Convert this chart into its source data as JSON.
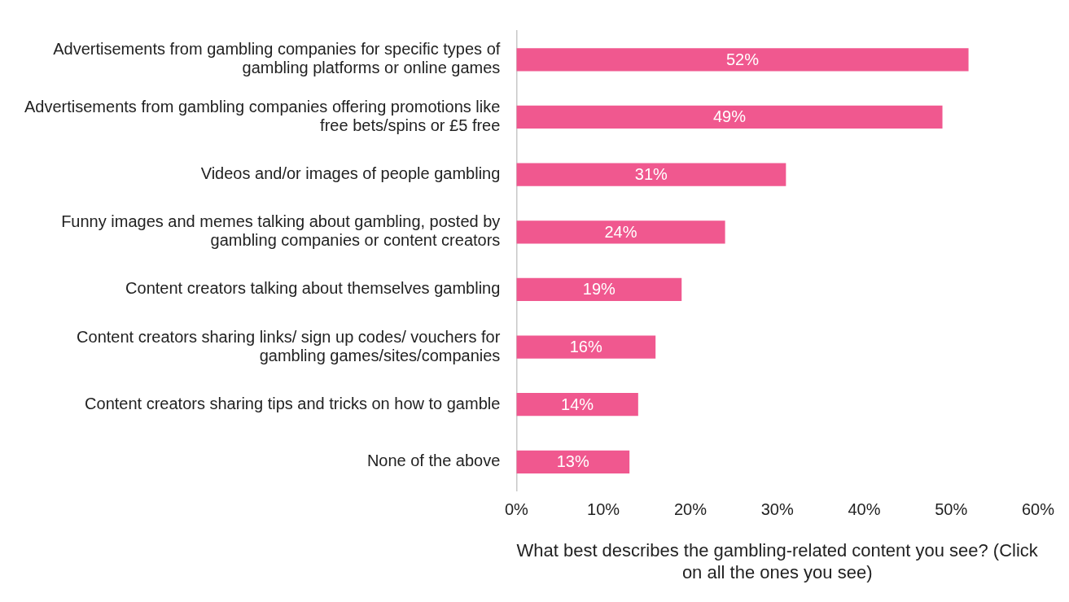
{
  "chart_data": {
    "type": "bar",
    "orientation": "horizontal",
    "xlabel": "What best describes the gambling-related content you see? (Click on all the ones you see)",
    "categories": [
      "Advertisements from gambling companies for specific types of gambling platforms or online games",
      "Advertisements from gambling companies offering promotions like free bets/spins or £5 free",
      "Videos and/or images of people gambling",
      "Funny images and memes talking about gambling, posted by gambling companies or content creators",
      "Content creators talking about themselves gambling",
      "Content creators sharing links/ sign up codes/ vouchers for gambling games/sites/companies",
      "Content creators sharing tips and tricks on how to gamble",
      "None of the above"
    ],
    "values": [
      52,
      49,
      31,
      24,
      19,
      16,
      14,
      13
    ],
    "value_labels": [
      "52%",
      "49%",
      "31%",
      "24%",
      "19%",
      "16%",
      "14%",
      "13%"
    ],
    "color": "#f0588f",
    "xlim": [
      0,
      60
    ],
    "xticks": [
      {
        "value": 0,
        "label": "0%"
      },
      {
        "value": 10,
        "label": "10%"
      },
      {
        "value": 20,
        "label": "20%"
      },
      {
        "value": 30,
        "label": "30%"
      },
      {
        "value": 40,
        "label": "40%"
      },
      {
        "value": 50,
        "label": "50%"
      },
      {
        "value": 60,
        "label": "60%"
      }
    ],
    "grid": false,
    "legend": false
  }
}
